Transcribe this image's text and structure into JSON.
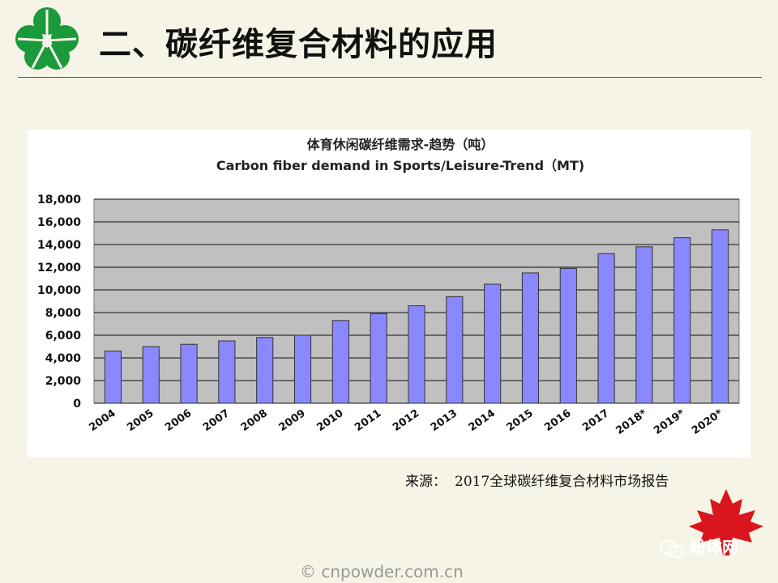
{
  "header": {
    "title": "二、碳纤维复合材料的应用"
  },
  "chart_data": {
    "type": "bar",
    "title": "体育休闲碳纤维需求-趋势（吨）",
    "subtitle": "Carbon fiber demand in Sports/Leisure-Trend（MT)",
    "categories": [
      "2004",
      "2005",
      "2006",
      "2007",
      "2008",
      "2009",
      "2010",
      "2011",
      "2012",
      "2013",
      "2014",
      "2015",
      "2016",
      "2017",
      "2018*",
      "2019*",
      "2020*"
    ],
    "values": [
      4600,
      5000,
      5200,
      5500,
      5800,
      6000,
      7300,
      7900,
      8600,
      9400,
      10500,
      11500,
      11900,
      13200,
      13800,
      14600,
      15300
    ],
    "ylim": [
      0,
      18000
    ],
    "yticks": [
      "0",
      "2,000",
      "4,000",
      "6,000",
      "8,000",
      "10,000",
      "12,000",
      "14,000",
      "16,000",
      "18,000"
    ],
    "xlabel": "",
    "ylabel": "",
    "grid": true,
    "bar_color": "#8a88ff",
    "plot_bg": "#c0c0c0"
  },
  "source": {
    "label": "来源：",
    "text": "2017全球碳纤维复合材料市场报告"
  },
  "branding": {
    "wechat_name": "粉体网",
    "footer": "© cnpowder.com.cn"
  }
}
